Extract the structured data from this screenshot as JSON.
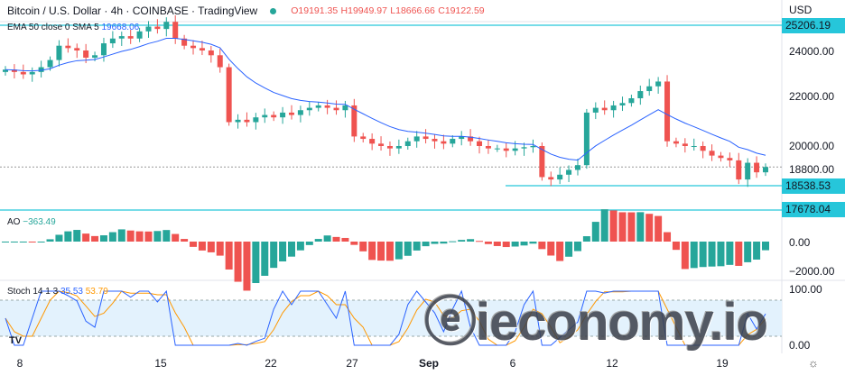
{
  "header": {
    "title": "Bitcoin / U.S. Dollar · 4h · COINBASE · TradingView",
    "open": "O19191.35",
    "high": "H19949.97",
    "low": "L18666.66",
    "close": "C19122.59"
  },
  "ema_label": {
    "name": "EMA 50 close 0 SMA 5",
    "value": "19668.06"
  },
  "ao_label": {
    "name": "AO",
    "value": "−363.49"
  },
  "stoch_label": {
    "name": "Stoch 14 1 3",
    "k": "35.53",
    "d": "53.79"
  },
  "currency": "USD",
  "colors": {
    "up": "#26a69a",
    "down": "#ef5350",
    "ema": "#2962ff",
    "level": "#26c6da",
    "stoch_k": "#2962ff",
    "stoch_d": "#ff9800"
  },
  "chart_data": {
    "type": "candlestick",
    "price_ticks": [
      "24000.00",
      "22000.00",
      "20000.00",
      "18800.00"
    ],
    "price_tags": [
      "25206.19",
      "18538.53",
      "17678.04"
    ],
    "ao_ticks": [
      "0.00",
      "−2000.00"
    ],
    "stoch_ticks": [
      "100.00",
      "0.00"
    ],
    "x_ticks": [
      "8",
      "15",
      "22",
      "27",
      "Sep",
      "6",
      "12",
      "19"
    ],
    "closes": [
      23200,
      23100,
      23000,
      23100,
      23300,
      23600,
      24200,
      24100,
      24000,
      23700,
      23800,
      24300,
      24500,
      24600,
      24500,
      24800,
      25000,
      24900,
      25200,
      24500,
      24200,
      24100,
      24000,
      23800,
      23300,
      21000,
      21100,
      21000,
      21200,
      21300,
      21200,
      21400,
      21300,
      21500,
      21600,
      21700,
      21600,
      21500,
      21700,
      20400,
      20300,
      20100,
      20000,
      19900,
      20000,
      20200,
      20400,
      20300,
      20200,
      20100,
      20300,
      20400,
      20200,
      20000,
      19900,
      19900,
      19800,
      19900,
      19950,
      20000,
      18700,
      18600,
      18800,
      19000,
      19200,
      21400,
      21600,
      21500,
      21700,
      21800,
      22000,
      22300,
      22500,
      22700,
      20200,
      20100,
      20000,
      20000,
      19800,
      19600,
      19500,
      19400,
      18600,
      19300,
      18900,
      19122.59
    ]
  },
  "watermark": "ieconomy.io"
}
